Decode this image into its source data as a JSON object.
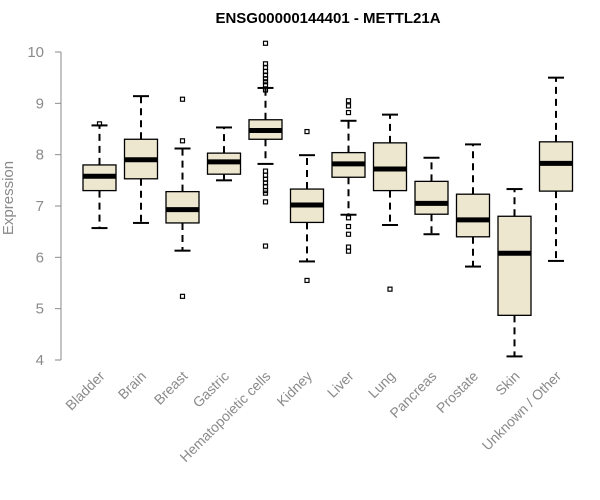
{
  "chart_data": {
    "type": "boxplot",
    "title": "ENSG00000144401 - METTL21A",
    "xlabel": "",
    "ylabel": "Expression",
    "ylim": [
      4,
      10
    ],
    "yticks": [
      4,
      5,
      6,
      7,
      8,
      9,
      10
    ],
    "box_fill": "#ede7d0",
    "box_stroke": "#000000",
    "categories": [
      "Bladder",
      "Brain",
      "Breast",
      "Gastric",
      "Hematopoietic cells",
      "Kidney",
      "Liver",
      "Lung",
      "Pancreas",
      "Prostate",
      "Skin",
      "Unknown / Other"
    ],
    "boxes": [
      {
        "whisker_low": 6.57,
        "q1": 7.3,
        "median": 7.58,
        "q3": 7.8,
        "whisker_high": 8.57,
        "outliers": [
          8.6
        ]
      },
      {
        "whisker_low": 6.67,
        "q1": 7.53,
        "median": 7.9,
        "q3": 8.3,
        "whisker_high": 9.14,
        "outliers": []
      },
      {
        "whisker_low": 6.13,
        "q1": 6.67,
        "median": 6.93,
        "q3": 7.28,
        "whisker_high": 8.12,
        "outliers": [
          9.08,
          8.27,
          5.24
        ]
      },
      {
        "whisker_low": 7.5,
        "q1": 7.62,
        "median": 7.86,
        "q3": 8.03,
        "whisker_high": 8.53,
        "outliers": []
      },
      {
        "whisker_low": 7.82,
        "q1": 8.3,
        "median": 8.47,
        "q3": 8.68,
        "whisker_high": 9.3,
        "outliers": [
          10.17,
          9.77,
          9.7,
          9.62,
          9.55,
          9.48,
          9.42,
          9.36,
          9.26,
          7.68,
          7.6,
          7.52,
          7.45,
          7.38,
          7.3,
          7.25,
          7.08,
          6.22
        ]
      },
      {
        "whisker_low": 5.92,
        "q1": 6.68,
        "median": 7.02,
        "q3": 7.33,
        "whisker_high": 7.99,
        "outliers": [
          8.45,
          5.55
        ]
      },
      {
        "whisker_low": 6.83,
        "q1": 7.56,
        "median": 7.82,
        "q3": 8.04,
        "whisker_high": 8.66,
        "outliers": [
          9.05,
          8.95,
          8.82,
          6.77,
          6.6,
          6.45,
          6.2,
          6.12
        ]
      },
      {
        "whisker_low": 6.63,
        "q1": 7.3,
        "median": 7.72,
        "q3": 8.23,
        "whisker_high": 8.78,
        "outliers": [
          5.38
        ]
      },
      {
        "whisker_low": 6.45,
        "q1": 6.84,
        "median": 7.05,
        "q3": 7.48,
        "whisker_high": 7.94,
        "outliers": []
      },
      {
        "whisker_low": 5.82,
        "q1": 6.4,
        "median": 6.73,
        "q3": 7.23,
        "whisker_high": 8.2,
        "outliers": []
      },
      {
        "whisker_low": 4.07,
        "q1": 4.87,
        "median": 6.08,
        "q3": 6.8,
        "whisker_high": 7.33,
        "outliers": []
      },
      {
        "whisker_low": 5.93,
        "q1": 7.29,
        "median": 7.83,
        "q3": 8.25,
        "whisker_high": 9.5,
        "outliers": []
      }
    ]
  }
}
